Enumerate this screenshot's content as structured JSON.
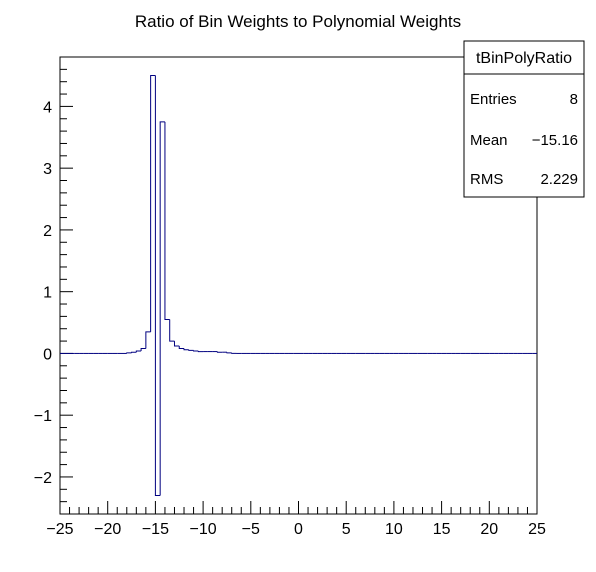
{
  "chart_data": {
    "type": "histogram",
    "title": "Ratio of Bin Weights to Polynomial Weights",
    "xlabel": "",
    "ylabel": "",
    "xlim": [
      -25,
      25
    ],
    "ylim": [
      -2.6,
      4.8
    ],
    "x_ticks": [
      -25,
      -20,
      -15,
      -10,
      -5,
      0,
      5,
      10,
      15,
      20,
      25
    ],
    "x_tick_labels": [
      "−25",
      "−20",
      "−15",
      "−10",
      "−5",
      "0",
      "5",
      "10",
      "15",
      "20",
      "25"
    ],
    "y_ticks": [
      -2,
      -1,
      0,
      1,
      2,
      3,
      4
    ],
    "y_tick_labels": [
      "−2",
      "−1",
      "0",
      "1",
      "2",
      "3",
      "4"
    ],
    "grid": false,
    "line_color": "#000080",
    "series": [
      {
        "bin_width": 0.5,
        "bin_edges_start": -25,
        "values": [
          0.0,
          0.0,
          0.0,
          0.0,
          0.0,
          0.0,
          0.0,
          0.0,
          0.0,
          0.0,
          0.0,
          0.0,
          0.0,
          0.0,
          0.01,
          0.02,
          0.04,
          0.08,
          0.35,
          4.5,
          -2.3,
          3.75,
          0.55,
          0.2,
          0.12,
          0.08,
          0.06,
          0.05,
          0.04,
          0.03,
          0.03,
          0.03,
          0.03,
          0.02,
          0.02,
          0.01,
          0.0,
          0.0,
          0.0,
          0.0,
          0.0,
          0.0,
          0.0,
          0.0,
          0.0,
          0.0,
          0.0,
          0.0,
          0.0,
          0.0,
          0.0,
          0.0,
          0.0,
          0.0,
          0.0,
          0.0,
          0.0,
          0.0,
          0.0,
          0.0,
          0.0,
          0.0,
          0.0,
          0.0,
          0.0,
          0.0,
          0.0,
          0.0,
          0.0,
          0.0,
          0.0,
          0.0,
          0.0,
          0.0,
          0.0,
          0.0,
          0.0,
          0.0,
          0.0,
          0.0,
          0.0,
          0.0,
          0.0,
          0.0,
          0.0,
          0.0,
          0.0,
          0.0,
          0.0,
          0.0,
          0.0,
          0.0,
          0.0,
          0.0,
          0.0,
          0.0,
          0.0,
          0.0,
          0.0,
          0.0
        ]
      }
    ]
  },
  "stats_box": {
    "name": "tBinPolyRatio",
    "rows": [
      {
        "label": "Entries",
        "value": "8"
      },
      {
        "label": "Mean",
        "value": "−15.16"
      },
      {
        "label": "RMS",
        "value": "2.229"
      }
    ]
  }
}
